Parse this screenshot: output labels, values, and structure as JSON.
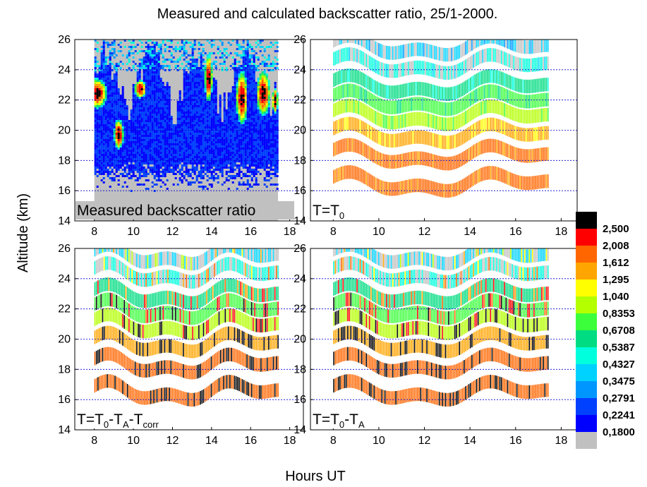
{
  "chart_data": {
    "type": "heatmap",
    "title": "Measured and calculated backscatter ratio, 25/1-2000.",
    "xlabel": "Hours UT",
    "ylabel": "Altitude (km)",
    "xlim": [
      7,
      18.7
    ],
    "ylim": [
      14,
      26
    ],
    "xticks": [
      "8",
      "10",
      "12",
      "14",
      "16",
      "18"
    ],
    "yticks": [
      "14",
      "16",
      "18",
      "20",
      "22",
      "24",
      "26"
    ],
    "grid": "dotted blue lines at 16, 18, 20, 22, 24 km",
    "data_x_range": [
      8.0,
      17.4
    ],
    "panels": [
      {
        "id": "measured",
        "label": "Measured backscatter ratio",
        "label_sub": "",
        "label_tail": ""
      },
      {
        "id": "T0",
        "label": "T=T",
        "label_sub": "0",
        "label_tail": ""
      },
      {
        "id": "T0-TA-Tcorr",
        "label": "T=T",
        "label_sub": "0",
        "label_tail": "-T_A-T_corr"
      },
      {
        "id": "T0-TA",
        "label": "T=T",
        "label_sub": "0",
        "label_tail": "-T_A"
      }
    ],
    "colorbar": {
      "labels": [
        "2,500",
        "2,008",
        "1,612",
        "1,295",
        "1,040",
        "0,8353",
        "0,6708",
        "0,5387",
        "0,4327",
        "0,3475",
        "0,2791",
        "0,2241",
        "0,1800"
      ],
      "colors": [
        "#000000",
        "#ff0000",
        "#ff6600",
        "#ffa500",
        "#ffff00",
        "#b4ff00",
        "#3cff3c",
        "#00dc82",
        "#00ffdc",
        "#00d2ff",
        "#0096ff",
        "#0040ff",
        "#0000ff",
        "#c0c0c0"
      ]
    },
    "layers_km": [
      16.4,
      18.2,
      19.6,
      20.8,
      21.8,
      22.8,
      24.2,
      25.4
    ],
    "layer_main_colors": [
      2,
      2,
      3,
      5,
      6,
      7,
      8,
      9
    ]
  }
}
